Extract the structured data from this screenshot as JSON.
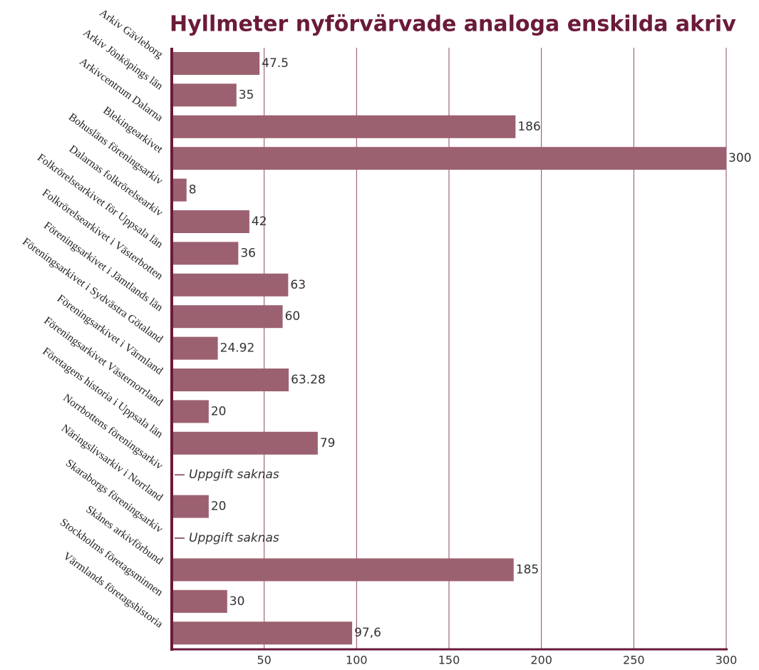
{
  "chart_data": {
    "type": "bar",
    "orientation": "horizontal",
    "title": "Hyllmeter nyförvärvade analoga enskilda akriv",
    "categories": [
      "Arkiv Gävleborg",
      "Arkiv Jönköpings län",
      "Arkivcentrum Dalarna",
      "Blekingearkivet",
      "Bohusläns föreningsarkiv",
      "Dalarnas folkrörelsearkiv",
      "Folkrörelsearkivet för Uppsala län",
      "Folkrörelsearkivet i Västerbotten",
      "Föreningsarkivet i Jämtlands län",
      "Föreningsarkivet i Sydvästra Götaland",
      "Föreningsarkivet i Värmland",
      "Föreningsarkivet Västernorrland",
      "Företagens historia i Uppsala län",
      "Norrbottens föreningsarkiv",
      "Näringslivsarkiv i Norrland",
      "Skaraborgs föreningsarkiv",
      "Skånes arkivförbund",
      "Stockholms företagsminnen",
      "Värmlands företagshistoria"
    ],
    "values": [
      47.5,
      35,
      186,
      300,
      8,
      42,
      36,
      63,
      60,
      24.92,
      63.28,
      20,
      79,
      null,
      20,
      null,
      185,
      30,
      97.6
    ],
    "value_labels": [
      "47.5",
      "35",
      "186",
      "300",
      "8",
      "42",
      "36",
      "63",
      "60",
      "24.92",
      "63.28",
      "20",
      "79",
      "Uppgift saknas",
      "20",
      "Uppgift saknas",
      "185",
      "30",
      "97,6"
    ],
    "color": "#9c6170",
    "xlim": [
      0,
      300
    ],
    "xticks": [
      50,
      100,
      150,
      200,
      250,
      300
    ],
    "grid": true
  }
}
